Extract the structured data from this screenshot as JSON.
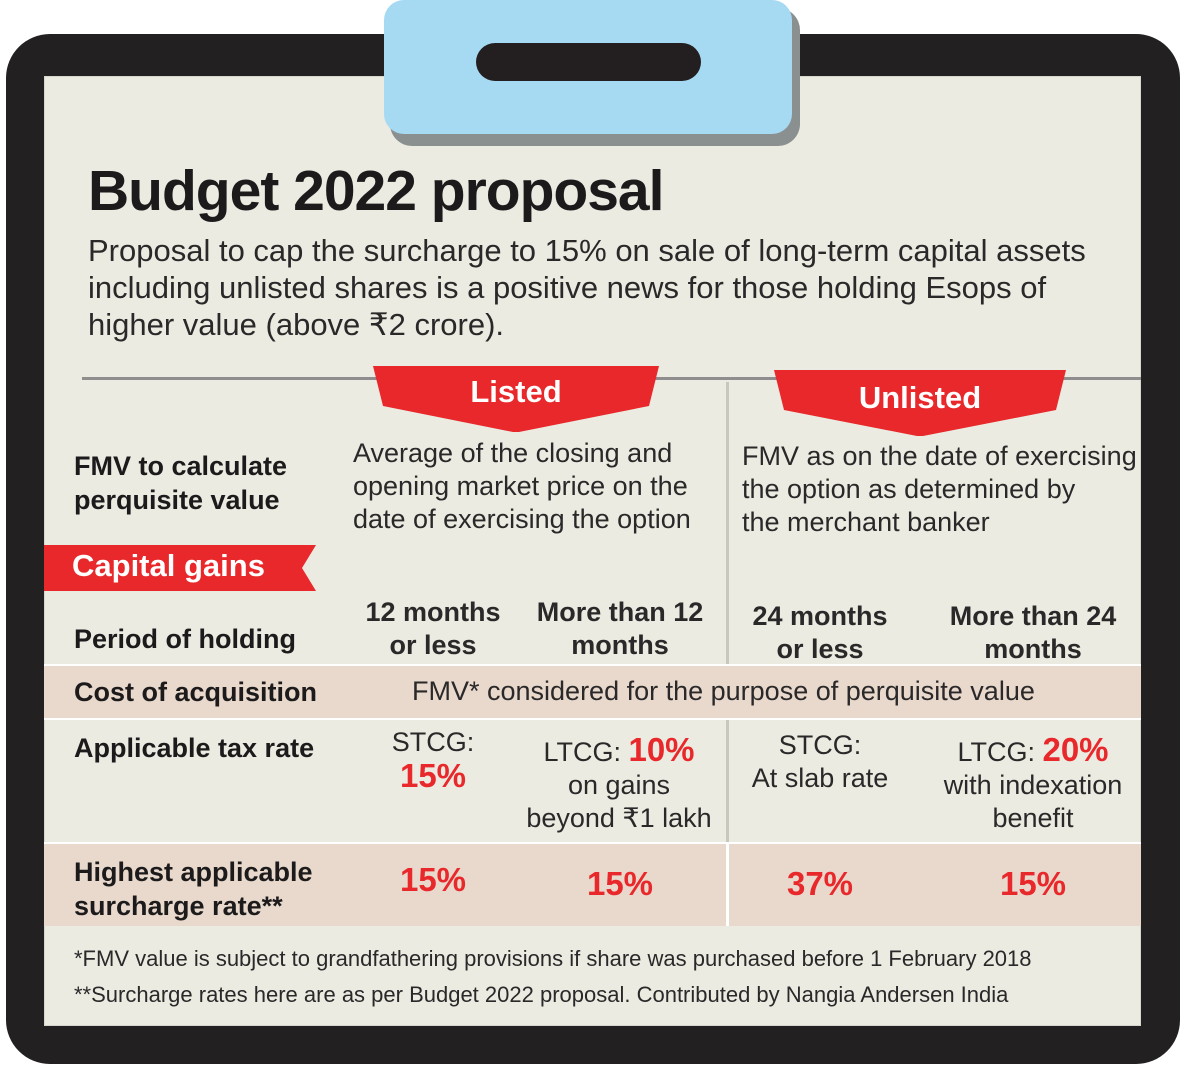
{
  "title": "Budget 2022 proposal",
  "subtitle": "Proposal to cap the surcharge to 15% on sale of long-term capital assets including unlisted shares is a positive news for those holding Esops of higher value (above ₹2 crore).",
  "columns": {
    "listed": "Listed",
    "unlisted": "Unlisted"
  },
  "fmv": {
    "label_line1": "FMV to calculate",
    "label_line2": "perquisite value",
    "listed_line1": "Average of the closing and",
    "listed_line2": "opening market price on the",
    "listed_line3": "date of exercising the option",
    "unlisted_line1": "FMV as on the date of exercising",
    "unlisted_line2": "the option as  determined by",
    "unlisted_line3": "the merchant banker"
  },
  "capital_gains_label": "Capital gains",
  "period": {
    "label": "Period of holding",
    "listed_short_line1": "12 months",
    "listed_short_line2": "or less",
    "listed_long_line1": "More than 12",
    "listed_long_line2": "months",
    "unlisted_short_line1": "24 months",
    "unlisted_short_line2": "or less",
    "unlisted_long_line1": "More than 24",
    "unlisted_long_line2": "months"
  },
  "cost": {
    "label": "Cost of acquisition",
    "value": "FMV* considered for the purpose of perquisite value"
  },
  "tax": {
    "label": "Applicable tax rate",
    "listed_short_prefix": "STCG:",
    "listed_short_rate": "15%",
    "listed_long_prefix": "LTCG: ",
    "listed_long_rate": "10%",
    "listed_long_line2": "on gains",
    "listed_long_line3": "beyond ₹1 lakh",
    "unlisted_short_line1": "STCG:",
    "unlisted_short_line2": "At slab rate",
    "unlisted_long_prefix": "LTCG: ",
    "unlisted_long_rate": "20%",
    "unlisted_long_line2": "with indexation",
    "unlisted_long_line3": "benefit"
  },
  "surcharge": {
    "label_line1": "Highest applicable",
    "label_line2": "surcharge rate**",
    "listed_short": "15%",
    "listed_long": "15%",
    "unlisted_short": "37%",
    "unlisted_long": "15%"
  },
  "footnotes": {
    "fmv": "*FMV value is subject to grandfathering provisions if share was purchased before 1 February 2018",
    "surcharge": "**Surcharge rates here are as per Budget 2022 proposal. Contributed by Nangia Andersen India"
  },
  "colors": {
    "accent_red": "#e8282b",
    "clip_blue": "#a6d9f2",
    "board": "#232021",
    "paper": "#ecebe1",
    "band": "#e8d9cc"
  }
}
